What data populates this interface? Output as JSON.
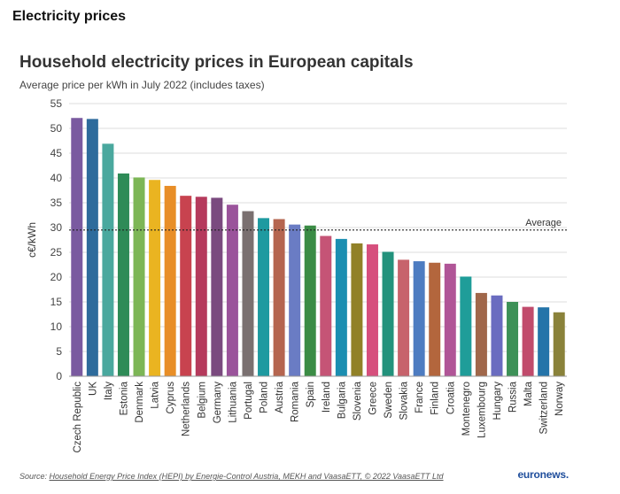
{
  "page": {
    "heading": "Electricity prices"
  },
  "chart_data": {
    "type": "bar",
    "title": "Household electricity prices in European capitals",
    "subtitle": "Average price per kWh in July 2022 (includes taxes)",
    "ylabel": "c€/kWh",
    "xlabel": "",
    "ylim": [
      0,
      55
    ],
    "yticks": [
      0,
      5,
      10,
      15,
      20,
      25,
      30,
      35,
      40,
      45,
      50,
      55
    ],
    "grid": true,
    "categories": [
      "Czech Republic",
      "UK",
      "Italy",
      "Estonia",
      "Denmark",
      "Latvia",
      "Cyprus",
      "Netherlands",
      "Belgium",
      "Germany",
      "Lithuania",
      "Portugal",
      "Poland",
      "Austria",
      "Romania",
      "Spain",
      "Ireland",
      "Bulgaria",
      "Slovenia",
      "Greece",
      "Sweden",
      "Slovakia",
      "France",
      "Finland",
      "Croatia",
      "Montenegro",
      "Luxembourg",
      "Hungary",
      "Russia",
      "Malta",
      "Switzerland",
      "Norway"
    ],
    "values": [
      52.1,
      51.9,
      46.9,
      40.9,
      40.1,
      39.6,
      38.4,
      36.4,
      36.2,
      36.0,
      34.6,
      33.3,
      31.9,
      31.7,
      30.6,
      30.4,
      28.3,
      27.7,
      26.8,
      26.6,
      25.1,
      23.5,
      23.2,
      22.9,
      22.7,
      20.1,
      16.8,
      16.3,
      15.0,
      14.0,
      13.9,
      12.9
    ],
    "colors": [
      "#7a5aa0",
      "#2e6b9c",
      "#4aa89e",
      "#2e8b57",
      "#7db656",
      "#eab421",
      "#e88e27",
      "#c8434f",
      "#b53a5c",
      "#7a4a7f",
      "#9a539b",
      "#7a7070",
      "#1e9aa0",
      "#b5654f",
      "#6a7cc4",
      "#3b8c45",
      "#c55476",
      "#1b8eb1",
      "#918127",
      "#d64f7d",
      "#23927c",
      "#c7636c",
      "#4d7cc1",
      "#b3663d",
      "#b05597",
      "#1f9d99",
      "#a0674a",
      "#6a6cc0",
      "#3d9157",
      "#c14b6c",
      "#2474a9",
      "#8a823a"
    ],
    "annotations": [
      {
        "text": "Average",
        "y": 29.5,
        "style": "dotted"
      }
    ]
  },
  "footer": {
    "source_prefix": "Source: ",
    "source_link": "Source: Household Energy Price Index (HEPI) by Energie-Control Austria, MEKH and VaasaETT, © 2022 VaasaETT Ltd",
    "brand": "euronews."
  }
}
